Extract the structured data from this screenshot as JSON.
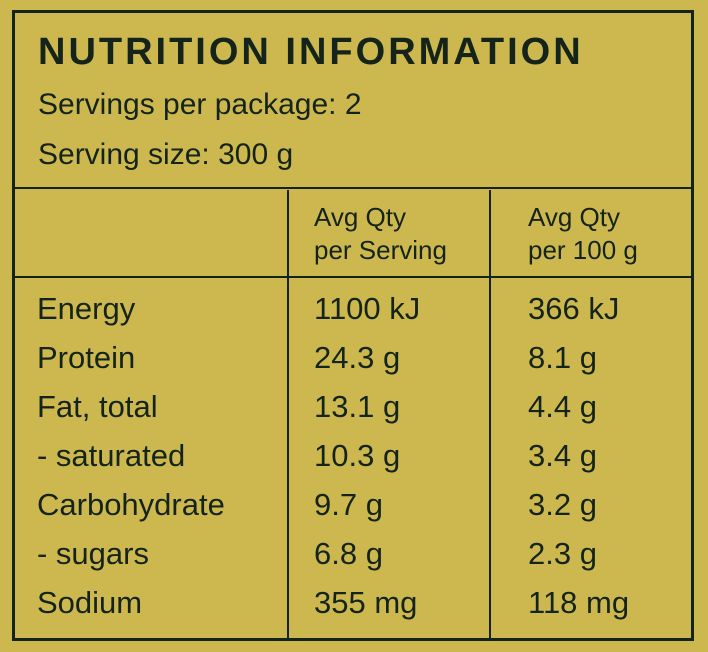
{
  "header": {
    "title": "NUTRITION INFORMATION",
    "servings": "Servings per package: 2",
    "serving_size": "Serving size: 300 g"
  },
  "table": {
    "headers": [
      [
        "Avg Qty",
        "per Serving"
      ],
      [
        "Avg Qty",
        "per 100 g"
      ]
    ],
    "rows": [
      [
        "Energy",
        "1100 kJ",
        "366 kJ"
      ],
      [
        "Protein",
        "24.3 g",
        "8.1 g"
      ],
      [
        "Fat, total",
        "13.1 g",
        "4.4 g"
      ],
      [
        "- saturated",
        "10.3 g",
        "3.4 g"
      ],
      [
        "Carbohydrate",
        "9.7 g",
        "3.2 g"
      ],
      [
        "- sugars",
        "6.8 g",
        "2.3 g"
      ],
      [
        "Sodium",
        "355 mg",
        "118 mg"
      ]
    ]
  }
}
